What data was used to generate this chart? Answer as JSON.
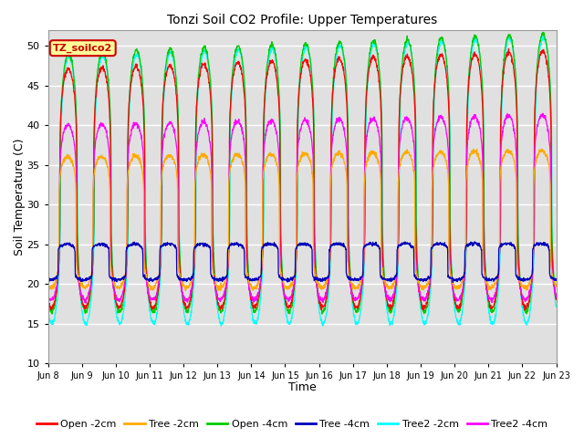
{
  "title": "Tonzi Soil CO2 Profile: Upper Temperatures",
  "xlabel": "Time",
  "ylabel": "Soil Temperature (C)",
  "ylim": [
    10,
    52
  ],
  "yticks": [
    10,
    15,
    20,
    25,
    30,
    35,
    40,
    45,
    50
  ],
  "xtick_labels": [
    "Jun 8",
    "Jun 9",
    "Jun 10",
    "Jun 11",
    "Jun 12",
    "Jun 13",
    "Jun 14",
    "Jun 15",
    "Jun 16",
    "Jun 17",
    "Jun 18",
    "Jun 19",
    "Jun 20",
    "Jun 21",
    "Jun 22",
    "Jun 23"
  ],
  "series": [
    {
      "label": "Open -2cm",
      "color": "#ff0000"
    },
    {
      "label": "Tree -2cm",
      "color": "#ffaa00"
    },
    {
      "label": "Open -4cm",
      "color": "#00cc00"
    },
    {
      "label": "Tree -4cm",
      "color": "#0000bb"
    },
    {
      "label": "Tree2 -2cm",
      "color": "#00ffff"
    },
    {
      "label": "Tree2 -4cm",
      "color": "#ff00ff"
    }
  ],
  "legend_label": "TZ_soilco2",
  "legend_label_color": "#cc0000",
  "legend_box_color": "#ffff99",
  "bg_color": "#e0e0e0",
  "n_days": 15,
  "samples_per_day": 144,
  "figwidth": 6.4,
  "figheight": 4.8,
  "dpi": 100
}
